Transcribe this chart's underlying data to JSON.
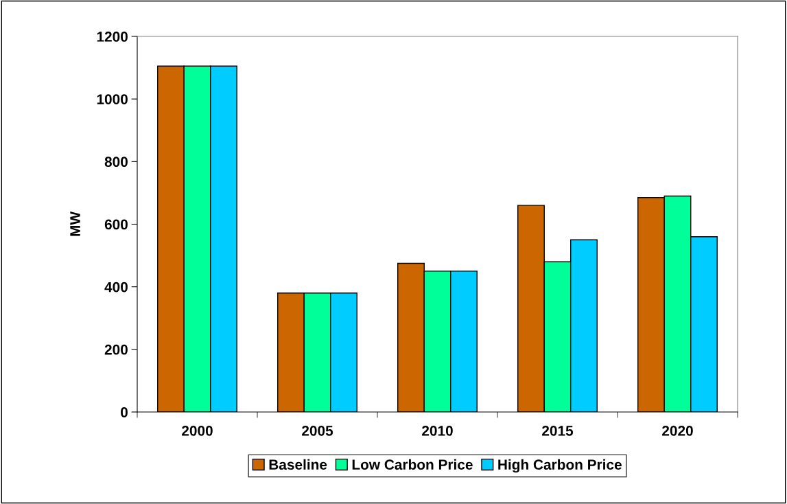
{
  "chart_data": {
    "type": "bar",
    "ylabel": "MW",
    "categories": [
      "2000",
      "2005",
      "2010",
      "2015",
      "2020"
    ],
    "series": [
      {
        "name": "Baseline",
        "color": "#cc6600",
        "values": [
          1105,
          380,
          475,
          660,
          685
        ]
      },
      {
        "name": "Low Carbon Price",
        "color": "#00ff99",
        "values": [
          1105,
          380,
          450,
          480,
          690
        ]
      },
      {
        "name": "High Carbon Price",
        "color": "#00ccff",
        "values": [
          1105,
          380,
          450,
          550,
          560
        ]
      }
    ],
    "ylim": [
      0,
      1200
    ],
    "yticks": [
      0,
      200,
      400,
      600,
      800,
      1000,
      1200
    ],
    "grid": false,
    "legend": "bottom"
  }
}
